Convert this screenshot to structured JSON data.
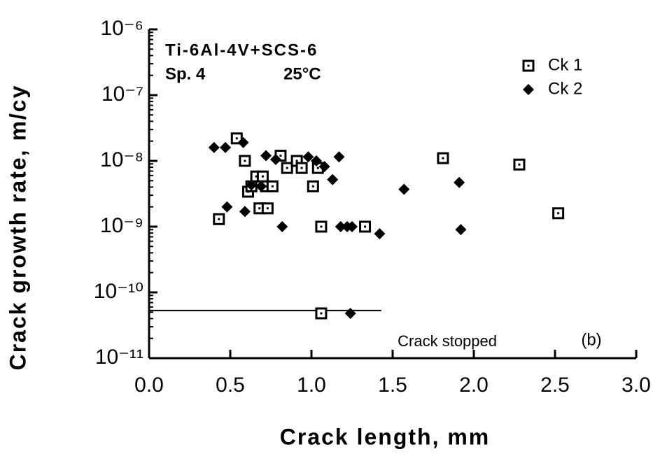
{
  "chart_data": {
    "type": "scatter",
    "title": "Ti-6Al-4V+SCS-6",
    "subtitle": "Sp. 4",
    "annotations": [
      "25°C",
      "Crack stopped",
      "(b)"
    ],
    "x_label": "Crack length,  mm",
    "y_label": "Crack growth rate,  m/cy",
    "log_y": true,
    "legend": "top-right",
    "xlim": [
      0,
      3
    ],
    "xticks": [
      {
        "value": 0,
        "label": "0.0"
      },
      0.5,
      {
        "value": 1,
        "label": "1.0"
      },
      1.5,
      {
        "value": 2,
        "label": "2.0"
      },
      2.5,
      {
        "value": 3,
        "label": "3.0"
      }
    ],
    "ylim": [
      1e-11,
      1e-06
    ],
    "yticks": [
      {
        "value": 1e-11,
        "label": "10⁻¹¹"
      },
      {
        "value": 1e-10,
        "label": "10⁻¹⁰"
      },
      {
        "value": 1e-09,
        "label": "10⁻⁹"
      },
      {
        "value": 1e-08,
        "label": "10⁻⁸"
      },
      {
        "value": 1e-07,
        "label": "10⁻⁷"
      },
      {
        "value": 1e-06,
        "label": "10⁻⁶"
      }
    ],
    "series": [
      {
        "name": "Ck 1",
        "marker": "square",
        "color": "#000000",
        "x": [
          0.54,
          0.59,
          0.61,
          0.63,
          0.66,
          0.7,
          0.72,
          0.76,
          0.68,
          0.73,
          0.43,
          0.81,
          0.85,
          0.91,
          0.94,
          1.04,
          1.01,
          1.06,
          1.33,
          1.81,
          2.28,
          2.52,
          1.06
        ],
        "values": [
          2.2e-08,
          1e-08,
          3.4e-09,
          4.1e-09,
          5.8e-09,
          5.8e-09,
          4.1e-09,
          4.1e-09,
          1.9e-09,
          1.9e-09,
          1.3e-09,
          1.2e-08,
          7.8e-09,
          1e-08,
          7.8e-09,
          7.8e-09,
          4.1e-09,
          1e-09,
          1e-09,
          1.1e-08,
          8.8e-09,
          1.6e-09,
          4.8e-11
        ]
      },
      {
        "name": "Ck 2",
        "marker": "diamond",
        "color": "#000000",
        "x": [
          0.4,
          0.47,
          0.58,
          0.48,
          0.59,
          0.72,
          0.78,
          0.98,
          1.03,
          1.08,
          1.17,
          1.13,
          0.63,
          0.69,
          0.82,
          1.18,
          1.22,
          1.25,
          1.42,
          1.57,
          1.91,
          1.92,
          1.24
        ],
        "values": [
          1.6e-08,
          1.6e-08,
          1.9e-08,
          2e-09,
          1.7e-09,
          1.2e-08,
          1.05e-08,
          1.15e-08,
          1e-08,
          8.2e-09,
          1.15e-08,
          5.2e-09,
          4.3e-09,
          4.1e-09,
          1e-09,
          1e-09,
          1e-09,
          1e-09,
          7.8e-10,
          3.7e-09,
          4.7e-09,
          9e-10,
          4.8e-11
        ]
      }
    ],
    "lines": [
      {
        "x": [
          0,
          1.43
        ],
        "values": [
          5.3e-11,
          5.3e-11
        ]
      }
    ]
  }
}
